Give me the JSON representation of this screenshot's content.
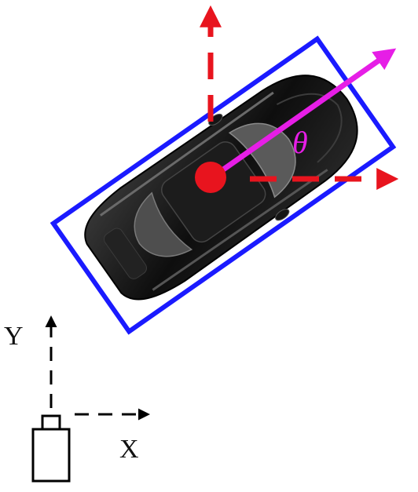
{
  "labels": {
    "theta": "θ",
    "x_axis": "X",
    "y_axis": "Y"
  },
  "colors": {
    "bounding_box": "#1a1aff",
    "center_axes": "#e8141e",
    "heading": "#e61ee6",
    "car_body": "#111111",
    "frame_lines": "#000000"
  },
  "icons": {
    "vehicle": "car-top-view-icon",
    "sensor": "sensor-camera-icon"
  }
}
